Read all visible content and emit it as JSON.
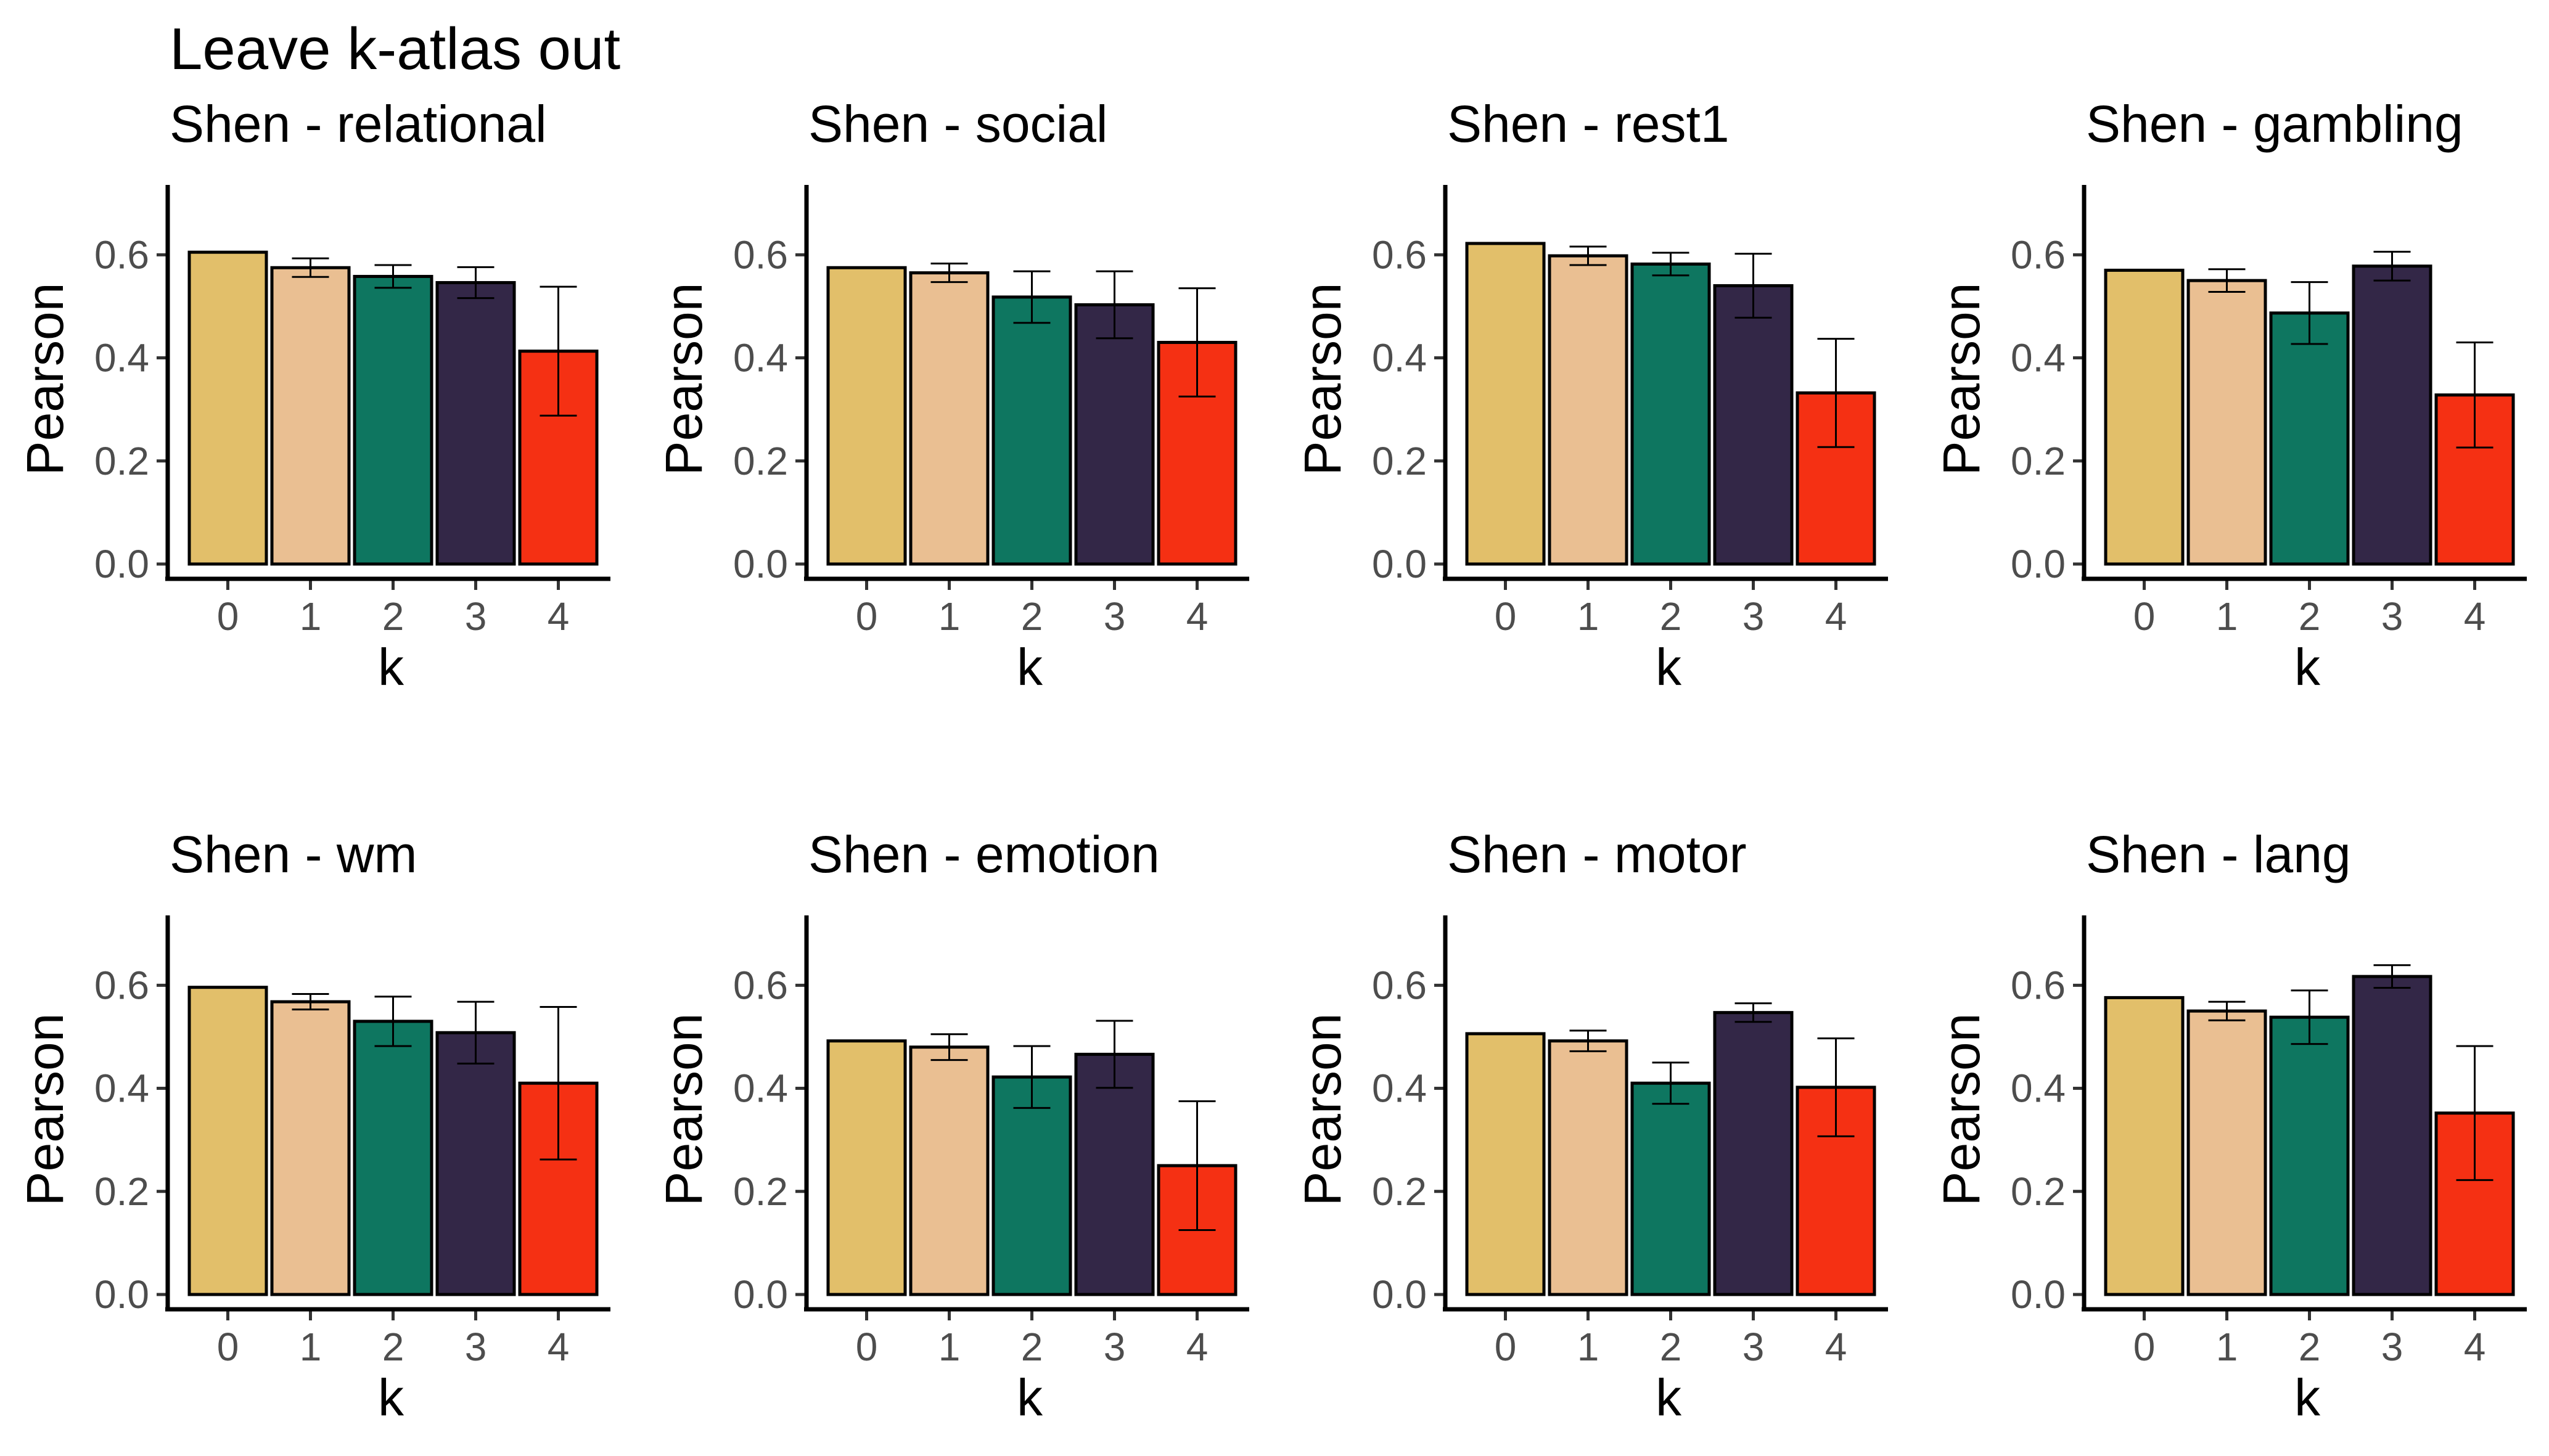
{
  "title": "Leave k-atlas out",
  "palette": [
    "#E2BF6A",
    "#EABF92",
    "#0E7660",
    "#332747",
    "#F53013"
  ],
  "chart_data": [
    {
      "type": "bar",
      "title": "Shen - relational",
      "xlabel": "k",
      "ylabel": "Pearson",
      "categories": [
        "0",
        "1",
        "2",
        "3",
        "4"
      ],
      "values": [
        0.605,
        0.575,
        0.558,
        0.546,
        0.413
      ],
      "errors": [
        null,
        0.018,
        0.022,
        0.03,
        0.125
      ],
      "ylim": [
        0,
        0.72
      ],
      "yticks": [
        "0.0",
        "0.2",
        "0.4",
        "0.6"
      ]
    },
    {
      "type": "bar",
      "title": "Shen - social",
      "xlabel": "k",
      "ylabel": "Pearson",
      "categories": [
        "0",
        "1",
        "2",
        "3",
        "4"
      ],
      "values": [
        0.575,
        0.565,
        0.518,
        0.503,
        0.43
      ],
      "errors": [
        null,
        0.018,
        0.05,
        0.065,
        0.105
      ],
      "ylim": [
        0,
        0.72
      ],
      "yticks": [
        "0.0",
        "0.2",
        "0.4",
        "0.6"
      ]
    },
    {
      "type": "bar",
      "title": "Shen - rest1",
      "xlabel": "k",
      "ylabel": "Pearson",
      "categories": [
        "0",
        "1",
        "2",
        "3",
        "4"
      ],
      "values": [
        0.622,
        0.598,
        0.582,
        0.54,
        0.332
      ],
      "errors": [
        null,
        0.018,
        0.022,
        0.062,
        0.105
      ],
      "ylim": [
        0,
        0.72
      ],
      "yticks": [
        "0.0",
        "0.2",
        "0.4",
        "0.6"
      ]
    },
    {
      "type": "bar",
      "title": "Shen - gambling",
      "xlabel": "k",
      "ylabel": "Pearson",
      "categories": [
        "0",
        "1",
        "2",
        "3",
        "4"
      ],
      "values": [
        0.57,
        0.55,
        0.487,
        0.578,
        0.328
      ],
      "errors": [
        null,
        0.022,
        0.06,
        0.028,
        0.102
      ],
      "ylim": [
        0,
        0.72
      ],
      "yticks": [
        "0.0",
        "0.2",
        "0.4",
        "0.6"
      ]
    },
    {
      "type": "bar",
      "title": "Shen - wm",
      "xlabel": "k",
      "ylabel": "Pearson",
      "categories": [
        "0",
        "1",
        "2",
        "3",
        "4"
      ],
      "values": [
        0.596,
        0.568,
        0.53,
        0.508,
        0.41
      ],
      "errors": [
        null,
        0.015,
        0.048,
        0.06,
        0.148
      ],
      "ylim": [
        0,
        0.72
      ],
      "yticks": [
        "0.0",
        "0.2",
        "0.4",
        "0.6"
      ]
    },
    {
      "type": "bar",
      "title": "Shen - emotion",
      "xlabel": "k",
      "ylabel": "Pearson",
      "categories": [
        "0",
        "1",
        "2",
        "3",
        "4"
      ],
      "values": [
        0.492,
        0.48,
        0.422,
        0.466,
        0.25
      ],
      "errors": [
        null,
        0.025,
        0.06,
        0.065,
        0.125
      ],
      "ylim": [
        0,
        0.72
      ],
      "yticks": [
        "0.0",
        "0.2",
        "0.4",
        "0.6"
      ]
    },
    {
      "type": "bar",
      "title": "Shen - motor",
      "xlabel": "k",
      "ylabel": "Pearson",
      "categories": [
        "0",
        "1",
        "2",
        "3",
        "4"
      ],
      "values": [
        0.506,
        0.492,
        0.41,
        0.547,
        0.402
      ],
      "errors": [
        null,
        0.02,
        0.04,
        0.018,
        0.095
      ],
      "ylim": [
        0,
        0.72
      ],
      "yticks": [
        "0.0",
        "0.2",
        "0.4",
        "0.6"
      ]
    },
    {
      "type": "bar",
      "title": "Shen - lang",
      "xlabel": "k",
      "ylabel": "Pearson",
      "categories": [
        "0",
        "1",
        "2",
        "3",
        "4"
      ],
      "values": [
        0.576,
        0.55,
        0.538,
        0.617,
        0.352
      ],
      "errors": [
        null,
        0.018,
        0.052,
        0.022,
        0.13
      ],
      "ylim": [
        0,
        0.72
      ],
      "yticks": [
        "0.0",
        "0.2",
        "0.4",
        "0.6"
      ]
    }
  ]
}
